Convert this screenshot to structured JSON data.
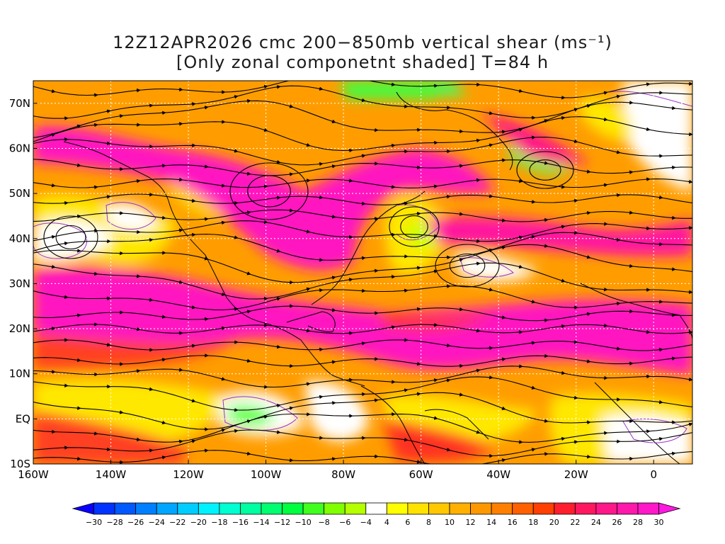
{
  "title": {
    "line1": "12Z12APR2026 cmc 200−850mb vertical shear (ms⁻¹)",
    "line2": "[Only zonal componetnt shaded] T=84 h"
  },
  "map": {
    "lon_range": [
      -160,
      10
    ],
    "lat_range": [
      -10,
      75
    ],
    "lon_ticks": [
      {
        "value": -160,
        "label": "160W"
      },
      {
        "value": -140,
        "label": "140W"
      },
      {
        "value": -120,
        "label": "120W"
      },
      {
        "value": -100,
        "label": "100W"
      },
      {
        "value": -80,
        "label": "80W"
      },
      {
        "value": -60,
        "label": "60W"
      },
      {
        "value": -40,
        "label": "40W"
      },
      {
        "value": -20,
        "label": "20W"
      },
      {
        "value": 0,
        "label": "0"
      }
    ],
    "lat_ticks": [
      {
        "value": -10,
        "label": "10S"
      },
      {
        "value": 0,
        "label": "EQ"
      },
      {
        "value": 10,
        "label": "10N"
      },
      {
        "value": 20,
        "label": "20N"
      },
      {
        "value": 30,
        "label": "30N"
      },
      {
        "value": 40,
        "label": "40N"
      },
      {
        "value": 50,
        "label": "50N"
      },
      {
        "value": 60,
        "label": "60N"
      },
      {
        "value": 70,
        "label": "70N"
      }
    ],
    "gridlines": "dotted",
    "streamlines": "black with arrowheads",
    "contour_color": "#9933cc"
  },
  "colorbar": {
    "labels": [
      "-30",
      "-28",
      "-26",
      "-24",
      "-22",
      "-20",
      "-18",
      "-16",
      "-14",
      "-12",
      "-10",
      "-8",
      "-6",
      "-4",
      "4",
      "6",
      "8",
      "10",
      "12",
      "14",
      "16",
      "18",
      "20",
      "22",
      "24",
      "26",
      "28",
      "30"
    ],
    "colors": [
      "#0a00ff",
      "#0033ff",
      "#0059ff",
      "#0080ff",
      "#00a6ff",
      "#00cdff",
      "#00f2ff",
      "#00ffd0",
      "#00ffa0",
      "#00ff70",
      "#00ff40",
      "#40ff20",
      "#80ff00",
      "#b4ff00",
      "#ffffff",
      "#ffff00",
      "#ffe200",
      "#ffc800",
      "#ffb000",
      "#ff9800",
      "#ff8000",
      "#ff6000",
      "#ff4000",
      "#ff1e2e",
      "#ff1860",
      "#ff1888",
      "#ff18aa",
      "#ff18c8",
      "#ff18e0"
    ]
  }
}
